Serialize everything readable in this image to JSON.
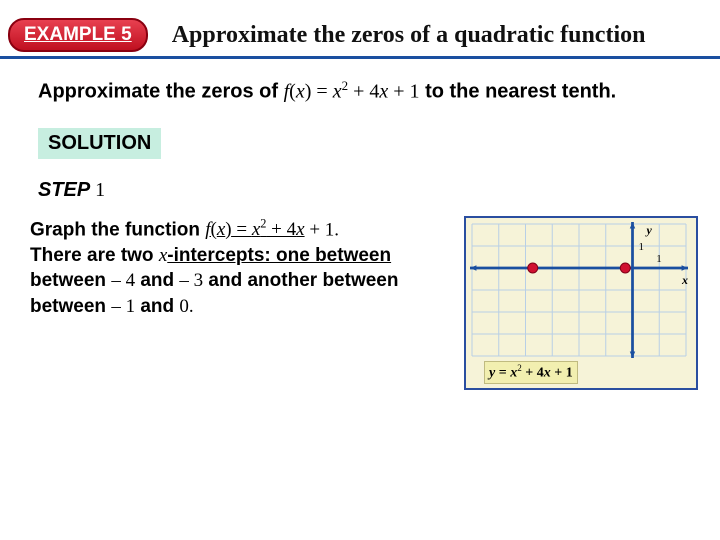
{
  "header": {
    "badge": "EXAMPLE 5",
    "title": "Approximate the zeros of a quadratic function"
  },
  "problem": {
    "pre": "Approximate the zeros of ",
    "fn_lhs": "f",
    "fn_arg": "x",
    "eq": " = ",
    "term1_var": "x",
    "term1_exp": "2",
    "plus1": " + 4",
    "term2_var": "x",
    "plus2": " + 1",
    "post": " to the nearest tenth."
  },
  "solution_label": "SOLUTION",
  "step": {
    "label": "STEP",
    "num": "1"
  },
  "body": {
    "t1": "Graph the function ",
    "fn_lhs": "f",
    "fn_arg": "x",
    "eq": " = ",
    "v1": "x",
    "exp": "2",
    "p1": " + 4",
    "v2": "x",
    "p2": " + 1.",
    "t2": "There are two ",
    "xi": "x",
    "t3": "-intercepts: one between ",
    "n1": " – 4",
    "t4": " and ",
    "n2": " – 3",
    "t5": " and another between ",
    "n3": " – 1",
    "t6": " and ",
    "n4": "0."
  },
  "graph": {
    "colors": {
      "border": "#2a4ea0",
      "bg": "#f6f3d8",
      "grid": "#b8cfe6",
      "axis": "#1a4fa0",
      "curve": "#1a8fd0",
      "arrow": "#1a4fa0",
      "point": "#d01030",
      "label_bg": "#f2efb0"
    },
    "x_range": [
      -6,
      2
    ],
    "y_range": [
      -4,
      2
    ],
    "cell": 22,
    "intercepts_x": [
      -3.73,
      -0.27
    ],
    "axis_labels": {
      "x": "x",
      "y": "y",
      "y_tick": "1",
      "x_tick": "1"
    },
    "equation": {
      "lhs_var": "y",
      "eq": " = ",
      "v1": "x",
      "exp": "2",
      "p1": " + 4",
      "v2": "x",
      "p2": " + 1"
    }
  }
}
